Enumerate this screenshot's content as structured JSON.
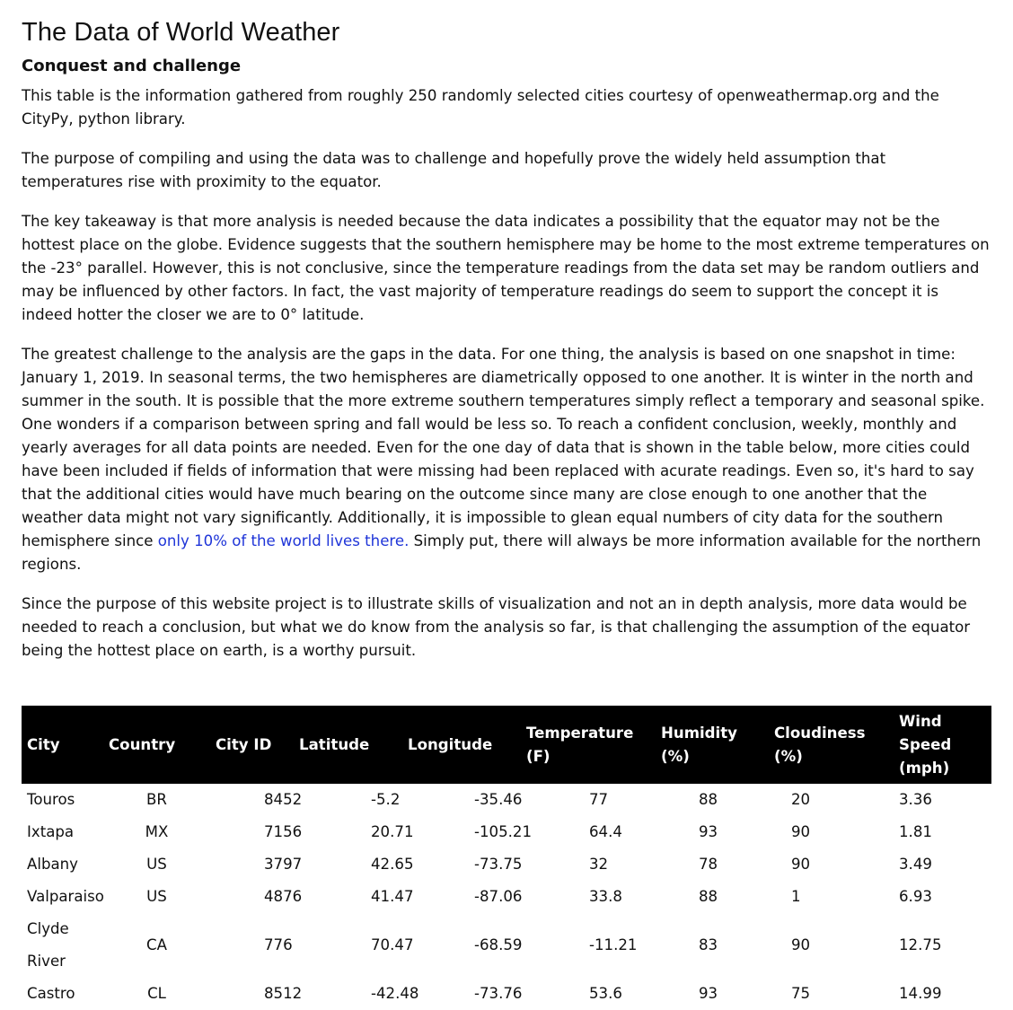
{
  "page": {
    "title": "The Data of World Weather",
    "subtitle": "Conquest and challenge"
  },
  "paragraphs": {
    "p1": "This table is the information gathered from roughly 250 randomly selected cities courtesy of openweathermap.org and the CityPy, python library.",
    "p2": "The purpose of compiling and using the data was to challenge and hopefully prove the widely held assumption that temperatures rise with proximity to the equator.",
    "p3": "The key takeaway is that more analysis is needed because the data indicates a possibility that the equator may not be the hottest place on the globe. Evidence suggests that the southern hemisphere may be home to the most extreme temperatures on the -23° parallel. However, this is not conclusive, since the temperature readings from the data set may be random outliers and may be influenced by other factors. In fact, the vast majority of temperature readings do seem to support the concept it is indeed hotter the closer we are to 0° latitude.",
    "p4_before_link": "The greatest challenge to the analysis are the gaps in the data. For one thing, the analysis is based on one snapshot in time: January 1, 2019. In seasonal terms, the two hemispheres are diametrically opposed to one another. It is winter in the north and summer in the south. It is possible that the more extreme southern temperatures simply reflect a temporary and seasonal spike. One wonders if a comparison between spring and fall would be less so. To reach a confident conclusion, weekly, monthly and yearly averages for all data points are needed. Even for the one day of data that is shown in the table below, more cities could have been included if fields of information that were missing had been replaced with acurate readings. Even so, it's hard to say that the additional cities would have much bearing on the outcome since many are close enough to one another that the weather data might not vary significantly. Additionally, it is impossible to glean equal numbers of city data for the southern hemisphere since ",
    "p4_link": "only 10% of the world lives there.",
    "p4_after_link": " Simply put, there will always be more information available for the northern regions.",
    "p5": "Since the purpose of this website project is to illustrate skills of visualization and not an in depth analysis, more data would be needed to reach a conclusion, but what we do know from the analysis so far, is that challenging the assumption of the equator being the hottest place on earth, is a worthy pursuit."
  },
  "colors": {
    "link": "#1f35d8",
    "header_bg": "#000000",
    "header_text": "#ffffff"
  },
  "table": {
    "headers": {
      "city": "City",
      "country": "Country",
      "city_id": "City ID",
      "latitude": "Latitude",
      "longitude": "Longitude",
      "temperature": "Temperature (F)",
      "humidity": "Humidity (%)",
      "cloudiness": "Cloudiness (%)",
      "wind": "Wind Speed (mph)"
    },
    "rows": [
      [
        "Touros",
        "BR",
        "8452",
        "-5.2",
        "-35.46",
        "77",
        "88",
        "20",
        "3.36"
      ],
      [
        "Ixtapa",
        "MX",
        "7156",
        "20.71",
        "-105.21",
        "64.4",
        "93",
        "90",
        "1.81"
      ],
      [
        "Albany",
        "US",
        "3797",
        "42.65",
        "-73.75",
        "32",
        "78",
        "90",
        "3.49"
      ],
      [
        "Valparaiso",
        "US",
        "4876",
        "41.47",
        "-87.06",
        "33.8",
        "88",
        "1",
        "6.93"
      ],
      [
        "Clyde River",
        "CA",
        "776",
        "70.47",
        "-68.59",
        "-11.21",
        "83",
        "90",
        "12.75"
      ],
      [
        "Castro",
        "CL",
        "8512",
        "-42.48",
        "-73.76",
        "53.6",
        "93",
        "75",
        "14.99"
      ]
    ]
  }
}
